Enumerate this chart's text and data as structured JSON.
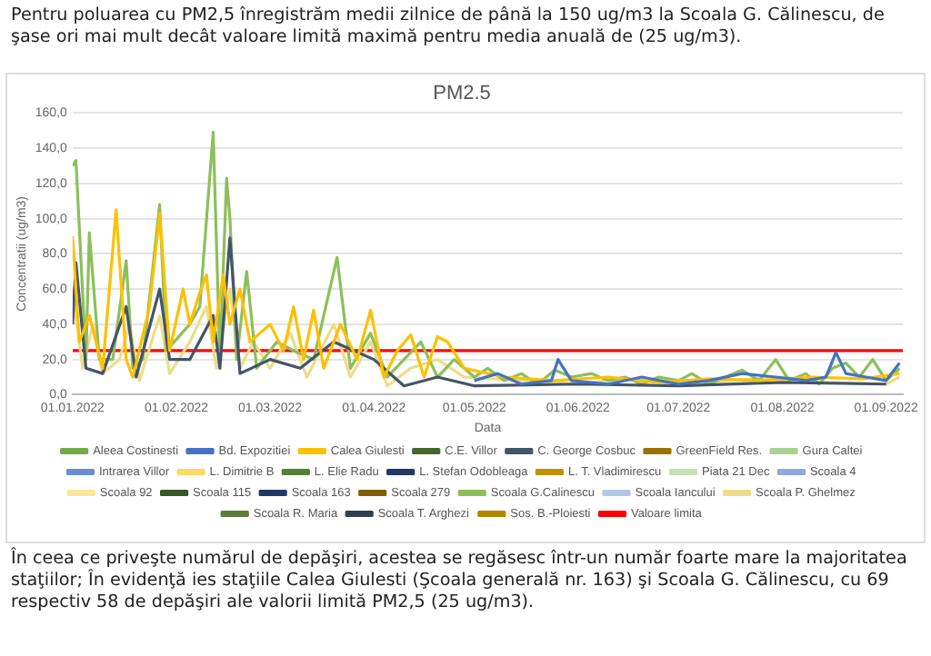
{
  "chart_data": {
    "type": "line",
    "title": "PM2.5",
    "xlabel": "Data",
    "ylabel": "Concentratii (ug/m3)",
    "annotations": [
      "Pentru poluarea cu PM2,5 înregistrăm medii zilnice de până la 150 ug/m3 la Scoala G. Călinescu, de şase ori mai mult decât valoare limită maximă pentru media anuală de (25 ug/m3).",
      "În ceea ce priveşte numărul de depăşiri, acestea se regăsesc într-un număr foarte mare la majoritatea staţiilor; În evidenţă ies staţiile Calea Giulesti (Şcoala generală nr.  163) şi Scoala G. Călinescu, cu 69 respectiv 58 de depăşiri ale valorii limită PM2,5 (25 ug/m3)."
    ],
    "xlim": [
      "2022-01-01",
      "2022-09-06"
    ],
    "xticks": [
      {
        "value": "2022-01-01",
        "label": "01.01.2022"
      },
      {
        "value": "2022-02-01",
        "label": "01.02.2022"
      },
      {
        "value": "2022-03-01",
        "label": "01.03.2022"
      },
      {
        "value": "2022-04-01",
        "label": "01.04.2022"
      },
      {
        "value": "2022-05-01",
        "label": "01.05.2022"
      },
      {
        "value": "2022-06-01",
        "label": "01.06.2022"
      },
      {
        "value": "2022-07-01",
        "label": "01.07.2022"
      },
      {
        "value": "2022-08-01",
        "label": "01.08.2022"
      },
      {
        "value": "2022-09-01",
        "label": "01.09.2022"
      }
    ],
    "ylim": [
      0,
      160
    ],
    "yticks": [
      {
        "value": 0,
        "label": "0,0"
      },
      {
        "value": 20,
        "label": "20,0"
      },
      {
        "value": 40,
        "label": "40,0"
      },
      {
        "value": 60,
        "label": "60,0"
      },
      {
        "value": 80,
        "label": "80,0"
      },
      {
        "value": 100,
        "label": "100,0"
      },
      {
        "value": 120,
        "label": "120,0"
      },
      {
        "value": 140,
        "label": "140,0"
      },
      {
        "value": 160,
        "label": "160,0"
      }
    ],
    "grid": "y",
    "legend": "bottom",
    "marker": "none",
    "line_style": "solid",
    "series": [
      {
        "name": "Aleea Costinesti",
        "color": "#70ad47"
      },
      {
        "name": "Bd. Expozitiei",
        "color": "#4472c4",
        "x": [
          "2022-05-01",
          "2022-05-08",
          "2022-05-15",
          "2022-05-24",
          "2022-05-26",
          "2022-05-30",
          "2022-06-10",
          "2022-06-20",
          "2022-07-01",
          "2022-07-10",
          "2022-07-20",
          "2022-07-30",
          "2022-08-08",
          "2022-08-14",
          "2022-08-17",
          "2022-08-20",
          "2022-08-26",
          "2022-09-01",
          "2022-09-05"
        ],
        "values": [
          8,
          12,
          6,
          8,
          20,
          8,
          6,
          10,
          6,
          8,
          12,
          10,
          8,
          10,
          24,
          12,
          10,
          8,
          18
        ]
      },
      {
        "name": "Calea Giulesti",
        "color": "#ffc000",
        "x": [
          "2022-01-01",
          "2022-01-03",
          "2022-01-06",
          "2022-01-10",
          "2022-01-14",
          "2022-01-17",
          "2022-01-19",
          "2022-01-24",
          "2022-01-27",
          "2022-01-30",
          "2022-02-03",
          "2022-02-05",
          "2022-02-08",
          "2022-02-10",
          "2022-02-12",
          "2022-02-15",
          "2022-02-17",
          "2022-02-20",
          "2022-02-23",
          "2022-03-01",
          "2022-03-05",
          "2022-03-08",
          "2022-03-11",
          "2022-03-14",
          "2022-03-17",
          "2022-03-22",
          "2022-03-27",
          "2022-03-31",
          "2022-04-04",
          "2022-04-08",
          "2022-04-12",
          "2022-04-16",
          "2022-04-20",
          "2022-04-23",
          "2022-04-28",
          "2022-05-10",
          "2022-05-25",
          "2022-06-10",
          "2022-06-25",
          "2022-07-10",
          "2022-07-25",
          "2022-08-10",
          "2022-08-25",
          "2022-09-05"
        ],
        "values": [
          90,
          30,
          45,
          15,
          105,
          20,
          10,
          50,
          103,
          25,
          60,
          40,
          58,
          68,
          30,
          68,
          40,
          60,
          30,
          40,
          25,
          50,
          20,
          48,
          15,
          40,
          20,
          48,
          10,
          25,
          34,
          10,
          33,
          30,
          15,
          10,
          8,
          10,
          7,
          9,
          8,
          10,
          9,
          12
        ]
      },
      {
        "name": "C.E. Villor",
        "color": "#43682b"
      },
      {
        "name": "C. George Cosbuc",
        "color": "#44546a",
        "x": [
          "2022-01-01",
          "2022-01-02",
          "2022-01-05",
          "2022-01-10",
          "2022-01-17",
          "2022-01-20",
          "2022-01-27",
          "2022-01-30",
          "2022-02-05",
          "2022-02-12",
          "2022-02-14",
          "2022-02-17",
          "2022-02-20",
          "2022-03-01",
          "2022-03-10",
          "2022-03-20",
          "2022-04-01",
          "2022-04-10",
          "2022-04-20",
          "2022-05-01",
          "2022-06-01",
          "2022-07-01",
          "2022-08-01",
          "2022-09-01"
        ],
        "values": [
          40,
          75,
          15,
          12,
          50,
          10,
          60,
          20,
          20,
          45,
          15,
          89,
          12,
          20,
          15,
          30,
          20,
          5,
          10,
          5,
          6,
          5,
          7,
          6
        ]
      },
      {
        "name": "GreenField Res.",
        "color": "#997300"
      },
      {
        "name": "Gura Caltei",
        "color": "#a9d18e"
      },
      {
        "name": "Intrarea Villor",
        "color": "#698ed0"
      },
      {
        "name": "L. Dimitrie B",
        "color": "#ffd966"
      },
      {
        "name": "L. Elie Radu",
        "color": "#548235"
      },
      {
        "name": "L. Stefan Odobleaga",
        "color": "#203864"
      },
      {
        "name": "L. T. Vladimirescu",
        "color": "#bf9000"
      },
      {
        "name": "Piata 21 Dec",
        "color": "#c5e0b4"
      },
      {
        "name": "Scoala 4",
        "color": "#8faadc"
      },
      {
        "name": "Scoala 92",
        "color": "#ffe699"
      },
      {
        "name": "Scoala 115",
        "color": "#375623"
      },
      {
        "name": "Scoala 163",
        "color": "#1f3864"
      },
      {
        "name": "Scoala 279",
        "color": "#7f6000"
      },
      {
        "name": "Scoala G.Calinescu",
        "color": "#8cbf5a",
        "x": [
          "2022-01-01",
          "2022-01-02",
          "2022-01-05",
          "2022-01-06",
          "2022-01-09",
          "2022-01-13",
          "2022-01-17",
          "2022-01-19",
          "2022-01-22",
          "2022-01-27",
          "2022-01-29",
          "2022-02-05",
          "2022-02-08",
          "2022-02-12",
          "2022-02-14",
          "2022-02-16",
          "2022-02-17",
          "2022-02-19",
          "2022-02-22",
          "2022-02-25",
          "2022-03-03",
          "2022-03-08",
          "2022-03-14",
          "2022-03-21",
          "2022-03-25",
          "2022-03-31",
          "2022-04-05",
          "2022-04-10",
          "2022-04-15",
          "2022-04-20",
          "2022-04-25",
          "2022-05-01",
          "2022-05-05",
          "2022-05-10",
          "2022-05-15",
          "2022-05-20",
          "2022-05-25",
          "2022-05-30",
          "2022-06-05",
          "2022-06-10",
          "2022-06-15",
          "2022-06-20",
          "2022-06-25",
          "2022-07-01",
          "2022-07-05",
          "2022-07-10",
          "2022-07-15",
          "2022-07-20",
          "2022-07-25",
          "2022-07-30",
          "2022-08-03",
          "2022-08-08",
          "2022-08-12",
          "2022-08-16",
          "2022-08-20",
          "2022-08-24",
          "2022-08-28",
          "2022-09-01",
          "2022-09-05"
        ],
        "values": [
          130,
          133,
          20,
          92,
          20,
          20,
          76,
          15,
          20,
          108,
          25,
          40,
          50,
          149,
          20,
          123,
          100,
          20,
          70,
          15,
          30,
          25,
          20,
          78,
          15,
          35,
          10,
          20,
          30,
          10,
          20,
          10,
          15,
          8,
          12,
          6,
          14,
          10,
          12,
          8,
          10,
          6,
          10,
          8,
          12,
          6,
          10,
          14,
          8,
          20,
          8,
          12,
          6,
          15,
          18,
          10,
          20,
          8,
          15
        ]
      },
      {
        "name": "Scoala Iancului",
        "color": "#b4c7e7"
      },
      {
        "name": "Scoala P. Ghelmez",
        "color": "#eedc8a",
        "x": [
          "2022-01-01",
          "2022-01-04",
          "2022-01-07",
          "2022-01-10",
          "2022-01-15",
          "2022-01-18",
          "2022-01-21",
          "2022-01-27",
          "2022-01-30",
          "2022-02-05",
          "2022-02-10",
          "2022-02-13",
          "2022-02-17",
          "2022-02-20",
          "2022-02-24",
          "2022-03-01",
          "2022-03-07",
          "2022-03-12",
          "2022-03-20",
          "2022-03-25",
          "2022-03-31",
          "2022-04-05",
          "2022-04-12",
          "2022-04-20",
          "2022-04-28",
          "2022-05-15",
          "2022-06-01",
          "2022-06-15",
          "2022-07-01",
          "2022-07-15",
          "2022-08-01",
          "2022-08-15",
          "2022-09-01",
          "2022-09-05"
        ],
        "values": [
          60,
          15,
          40,
          12,
          20,
          40,
          8,
          45,
          12,
          30,
          50,
          15,
          60,
          15,
          30,
          15,
          35,
          10,
          40,
          10,
          30,
          5,
          15,
          20,
          10,
          8,
          6,
          9,
          6,
          8,
          10,
          7,
          6,
          10
        ]
      },
      {
        "name": "Scoala R. Maria",
        "color": "#5b7c3a"
      },
      {
        "name": "Scoala T. Arghezi",
        "color": "#333f50"
      },
      {
        "name": "Sos. B.-Ploiesti",
        "color": "#b38600"
      },
      {
        "name": "Valoare limita",
        "color": "#ff0000",
        "x": [
          "2022-01-01",
          "2022-09-06"
        ],
        "values": [
          25,
          25
        ]
      }
    ]
  }
}
